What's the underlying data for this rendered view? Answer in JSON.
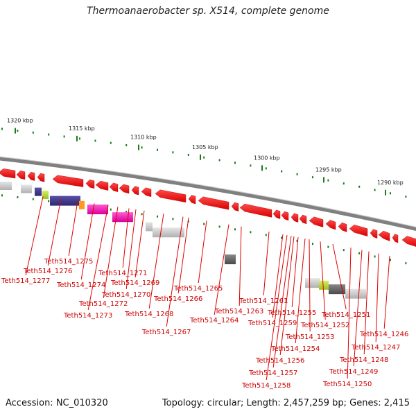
{
  "title": "Thermoanaerobacter sp. X514, complete genome",
  "footer": {
    "accession": "Accession: NC_010320",
    "summary": "Topology: circular; Length: 2,457,259 bp; Genes: 2,415"
  },
  "scale_labels": [
    "1320 kbp",
    "1315 kbp",
    "1310 kbp",
    "1305 kbp",
    "1300 kbp",
    "1295 kbp",
    "1290 kbp"
  ],
  "gene_labels": [
    "Teth514_1277",
    "Teth514_1276",
    "Teth514_1275",
    "Teth514_1274",
    "Teth514_1273",
    "Teth514_1272",
    "Teth514_1271",
    "Teth514_1270",
    "Teth514_1269",
    "Teth514_1268",
    "Teth514_1267",
    "Teth514_1266",
    "Teth514_1265",
    "Teth514_1264",
    "Teth514_1263",
    "Teth514_1261",
    "Teth514_1259",
    "Teth514_1258",
    "Teth514_1257",
    "Teth514_1256",
    "Teth514_1255",
    "Teth514_1254",
    "Teth514_1253",
    "Teth514_1252",
    "Teth514_1251",
    "Teth514_1250",
    "Teth514_1249",
    "Teth514_1248",
    "Teth514_1247",
    "Teth514_1246"
  ],
  "colors": {
    "backbone": "#808080",
    "gene_red": "#ff0000",
    "tick_green": "#1a7a1a",
    "label_red": "#cc0000",
    "leader_red": "#e00000"
  }
}
